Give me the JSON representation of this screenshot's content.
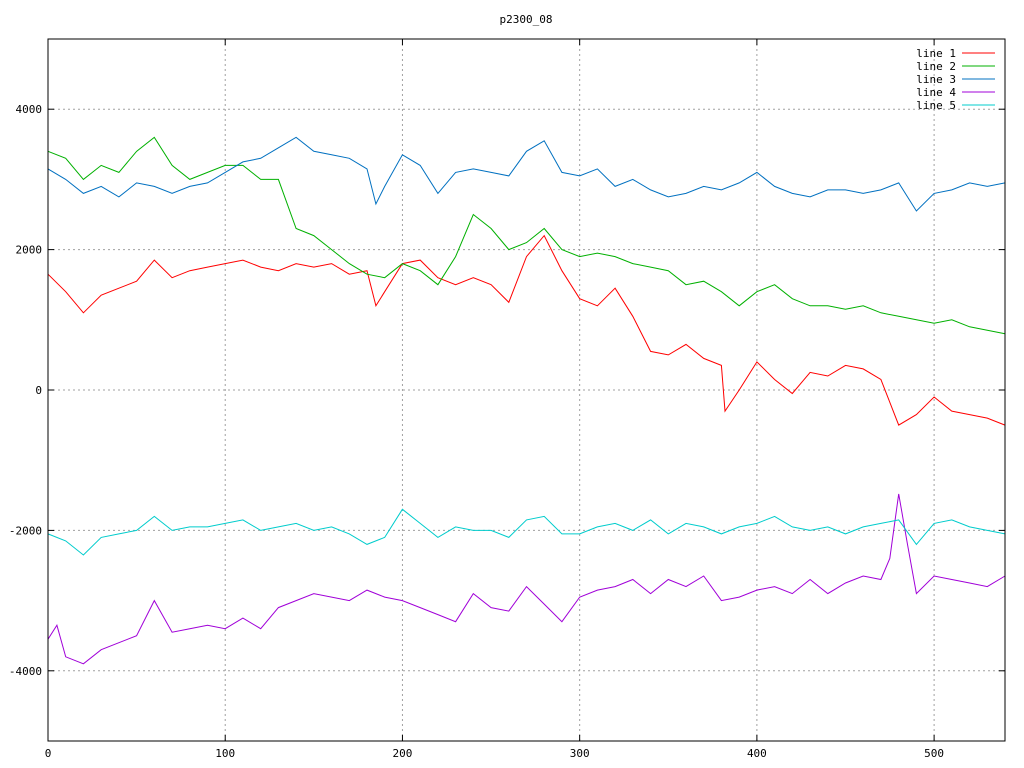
{
  "chart_data": {
    "type": "line",
    "title": "p2300_08",
    "xlabel": "",
    "ylabel": "",
    "xlim": [
      0,
      540
    ],
    "ylim": [
      -5000,
      5000
    ],
    "xticks": [
      0,
      100,
      200,
      300,
      400,
      500
    ],
    "yticks": [
      -4000,
      -2000,
      0,
      2000,
      4000
    ],
    "grid": true,
    "legend_position": "top-right",
    "series": [
      {
        "name": "line 1",
        "color": "#ff0000",
        "x": [
          0,
          10,
          20,
          30,
          40,
          50,
          60,
          70,
          80,
          90,
          100,
          110,
          120,
          130,
          140,
          150,
          160,
          170,
          180,
          185,
          190,
          200,
          210,
          220,
          230,
          240,
          250,
          260,
          270,
          280,
          290,
          300,
          310,
          320,
          330,
          340,
          350,
          360,
          370,
          380,
          382,
          390,
          400,
          410,
          420,
          430,
          440,
          450,
          460,
          470,
          480,
          490,
          500,
          510,
          520,
          530,
          540
        ],
        "y": [
          1650,
          1400,
          1100,
          1350,
          1450,
          1550,
          1850,
          1600,
          1700,
          1750,
          1800,
          1850,
          1750,
          1700,
          1800,
          1750,
          1800,
          1650,
          1700,
          1200,
          1400,
          1800,
          1850,
          1600,
          1500,
          1600,
          1500,
          1250,
          1900,
          2200,
          1700,
          1300,
          1200,
          1450,
          1050,
          550,
          500,
          650,
          450,
          350,
          -300,
          0,
          400,
          150,
          -50,
          250,
          200,
          350,
          300,
          150,
          -500,
          -350,
          -100,
          -300,
          -350,
          -400,
          -500
        ]
      },
      {
        "name": "line 2",
        "color": "#00b000",
        "x": [
          0,
          10,
          20,
          30,
          40,
          50,
          60,
          70,
          80,
          90,
          100,
          110,
          120,
          130,
          140,
          150,
          160,
          170,
          180,
          190,
          200,
          210,
          220,
          230,
          240,
          250,
          260,
          270,
          280,
          290,
          300,
          310,
          320,
          330,
          340,
          350,
          360,
          370,
          380,
          390,
          400,
          410,
          420,
          430,
          440,
          450,
          460,
          470,
          480,
          490,
          500,
          510,
          520,
          530,
          540
        ],
        "y": [
          3400,
          3300,
          3000,
          3200,
          3100,
          3400,
          3600,
          3200,
          3000,
          3100,
          3200,
          3200,
          3000,
          3000,
          2300,
          2200,
          2000,
          1800,
          1650,
          1600,
          1800,
          1700,
          1500,
          1900,
          2500,
          2300,
          2000,
          2100,
          2300,
          2000,
          1900,
          1950,
          1900,
          1800,
          1750,
          1700,
          1500,
          1550,
          1400,
          1200,
          1400,
          1500,
          1300,
          1200,
          1200,
          1150,
          1200,
          1100,
          1050,
          1000,
          950,
          1000,
          900,
          850,
          800
        ]
      },
      {
        "name": "line 3",
        "color": "#0070c0",
        "x": [
          0,
          10,
          20,
          30,
          40,
          50,
          60,
          70,
          80,
          90,
          100,
          110,
          120,
          130,
          140,
          150,
          160,
          170,
          180,
          185,
          190,
          200,
          210,
          220,
          230,
          240,
          250,
          260,
          270,
          280,
          290,
          300,
          310,
          320,
          330,
          340,
          350,
          360,
          370,
          380,
          390,
          400,
          410,
          420,
          430,
          440,
          450,
          460,
          470,
          480,
          490,
          500,
          510,
          520,
          530,
          540
        ],
        "y": [
          3150,
          3000,
          2800,
          2900,
          2750,
          2950,
          2900,
          2800,
          2900,
          2950,
          3100,
          3250,
          3300,
          3450,
          3600,
          3400,
          3350,
          3300,
          3150,
          2650,
          2900,
          3350,
          3200,
          2800,
          3100,
          3150,
          3100,
          3050,
          3400,
          3550,
          3100,
          3050,
          3150,
          2900,
          3000,
          2850,
          2750,
          2800,
          2900,
          2850,
          2950,
          3100,
          2900,
          2800,
          2750,
          2850,
          2850,
          2800,
          2850,
          2950,
          2550,
          2800,
          2850,
          2950,
          2900,
          2950
        ]
      },
      {
        "name": "line 4",
        "color": "#a000d8",
        "x": [
          0,
          5,
          10,
          20,
          30,
          40,
          50,
          60,
          70,
          80,
          90,
          100,
          110,
          120,
          130,
          140,
          150,
          160,
          170,
          180,
          190,
          200,
          210,
          220,
          230,
          240,
          250,
          260,
          270,
          280,
          290,
          300,
          310,
          320,
          330,
          340,
          350,
          360,
          370,
          380,
          390,
          400,
          410,
          420,
          430,
          440,
          450,
          460,
          470,
          475,
          480,
          485,
          490,
          500,
          510,
          520,
          530,
          540
        ],
        "y": [
          -3550,
          -3350,
          -3800,
          -3900,
          -3700,
          -3600,
          -3500,
          -3000,
          -3450,
          -3400,
          -3350,
          -3400,
          -3250,
          -3400,
          -3100,
          -3000,
          -2900,
          -2950,
          -3000,
          -2850,
          -2950,
          -3000,
          -3100,
          -3200,
          -3300,
          -2900,
          -3100,
          -3150,
          -2800,
          -3050,
          -3300,
          -2950,
          -2850,
          -2800,
          -2700,
          -2900,
          -2700,
          -2800,
          -2650,
          -3000,
          -2950,
          -2850,
          -2800,
          -2900,
          -2700,
          -2900,
          -2750,
          -2650,
          -2700,
          -2400,
          -1480,
          -2200,
          -2900,
          -2650,
          -2700,
          -2750,
          -2800,
          -2650
        ]
      },
      {
        "name": "line 5",
        "color": "#00cccc",
        "x": [
          0,
          10,
          20,
          30,
          40,
          50,
          60,
          70,
          80,
          90,
          100,
          110,
          120,
          130,
          140,
          150,
          160,
          170,
          180,
          190,
          200,
          210,
          220,
          230,
          240,
          250,
          260,
          270,
          280,
          290,
          300,
          310,
          320,
          330,
          340,
          350,
          360,
          370,
          380,
          390,
          400,
          410,
          420,
          430,
          440,
          450,
          460,
          470,
          480,
          490,
          500,
          510,
          520,
          530,
          540
        ],
        "y": [
          -2050,
          -2150,
          -2350,
          -2100,
          -2050,
          -2000,
          -1800,
          -2000,
          -1950,
          -1950,
          -1900,
          -1850,
          -2000,
          -1950,
          -1900,
          -2000,
          -1950,
          -2050,
          -2200,
          -2100,
          -1700,
          -1900,
          -2100,
          -1950,
          -2000,
          -2000,
          -2100,
          -1850,
          -1800,
          -2050,
          -2050,
          -1950,
          -1900,
          -2000,
          -1850,
          -2050,
          -1900,
          -1950,
          -2050,
          -1950,
          -1900,
          -1800,
          -1950,
          -2000,
          -1950,
          -2050,
          -1950,
          -1900,
          -1850,
          -2200,
          -1900,
          -1850,
          -1950,
          -2000,
          -2050
        ]
      }
    ]
  }
}
